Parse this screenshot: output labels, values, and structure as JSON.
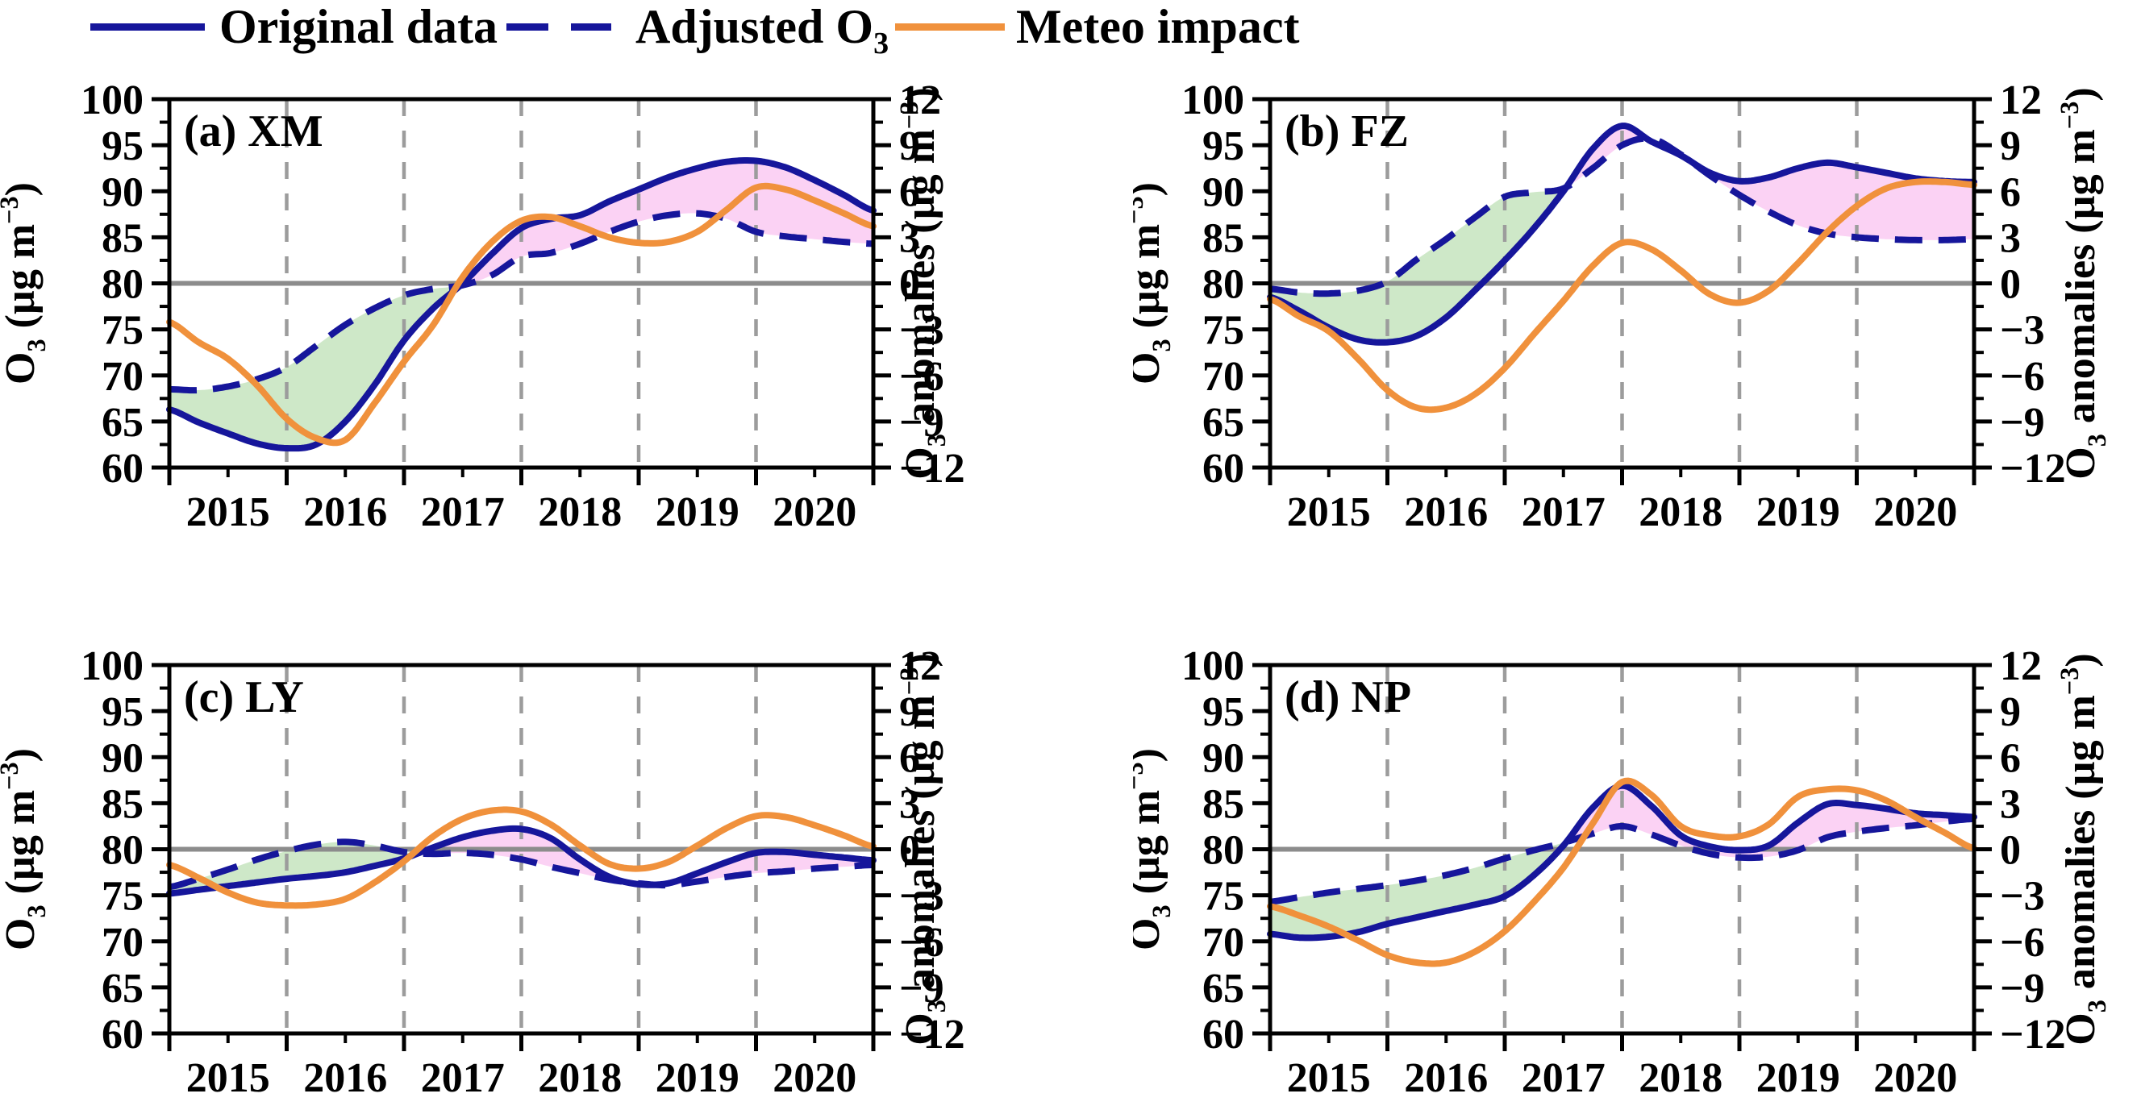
{
  "legend": {
    "items": [
      {
        "key": "original",
        "style": "solid-navy",
        "label_parts": [
          {
            "t": "Original data"
          }
        ]
      },
      {
        "key": "adjusted",
        "style": "dashed-navy",
        "label_parts": [
          {
            "t": "Adjusted O"
          },
          {
            "t": "3",
            "script": "sub"
          }
        ]
      },
      {
        "key": "meteo",
        "style": "solid-orange",
        "label_parts": [
          {
            "t": "Meteo impact"
          }
        ]
      }
    ]
  },
  "colors": {
    "navy": "#16169B",
    "orange": "#F0913C",
    "green_fill": "#CEE8C8",
    "pink_fill": "#FBD2F4",
    "grid": "#9C9C9C",
    "zero_line": "#8C8C8C",
    "axis": "#000000"
  },
  "axes": {
    "left_title_parts": [
      {
        "t": "O"
      },
      {
        "t": "3",
        "script": "sub"
      },
      {
        "t": " (µg m"
      },
      {
        "t": "−3",
        "script": "sup"
      },
      {
        "t": ")"
      }
    ],
    "right_title_parts": [
      {
        "t": "O"
      },
      {
        "t": "3",
        "script": "sub"
      },
      {
        "t": " anomalies (µg m"
      },
      {
        "t": "−3",
        "script": "sup"
      },
      {
        "t": ")"
      }
    ],
    "xlim": [
      2015,
      2021
    ],
    "x_major_ticks": [
      2015,
      2016,
      2017,
      2018,
      2019,
      2020,
      2021
    ],
    "x_minor_ticks": [
      2015.5,
      2016.5,
      2017.5,
      2018.5,
      2019.5,
      2020.5
    ],
    "x_tick_labels": [
      "2015",
      "2016",
      "2017",
      "2018",
      "2019",
      "2020"
    ],
    "gridline_years": [
      2016,
      2017,
      2018,
      2019,
      2020
    ],
    "ylim": [
      60,
      100
    ],
    "left_major_ticks": [
      60,
      65,
      70,
      75,
      80,
      85,
      90,
      95,
      100
    ],
    "left_minor_step": 2.5,
    "right_ylim": [
      -12,
      12
    ],
    "right_major_ticks": [
      -12,
      -9,
      -6,
      -3,
      0,
      3,
      6,
      9,
      12
    ],
    "right_minor_step": 1.5,
    "baseline": 80
  },
  "chart_data": [
    {
      "type": "line",
      "id": "a",
      "label": "(a) XM",
      "x_start": 2015,
      "x_step": 0.25,
      "xlabel": "",
      "ylabel": "O3 (ug m-3)",
      "ylabel_right": "O3 anomalies (ug m-3)",
      "ylim": [
        60,
        100
      ],
      "grid": "vertical-dashed",
      "legend_position": "top",
      "series": [
        {
          "name": "Original data",
          "values": [
            66.3,
            64.9,
            63.7,
            62.6,
            62.1,
            62.5,
            65.0,
            69.0,
            73.8,
            77.3,
            80.0,
            83.2,
            86.0,
            87.0,
            87.4,
            88.9,
            90.2,
            91.5,
            92.5,
            93.2,
            93.3,
            92.6,
            91.2,
            89.6,
            87.9
          ]
        },
        {
          "name": "Adjusted O3",
          "values": [
            68.5,
            68.4,
            68.8,
            69.6,
            70.9,
            73.2,
            75.5,
            77.3,
            78.7,
            79.4,
            79.8,
            80.9,
            82.9,
            83.3,
            84.3,
            85.6,
            86.7,
            87.4,
            87.6,
            87.0,
            85.6,
            85.1,
            84.8,
            84.5,
            84.3
          ]
        },
        {
          "name": "Meteo impact",
          "values": [
            75.8,
            73.6,
            71.8,
            68.9,
            65.3,
            63.2,
            63.0,
            67.0,
            71.5,
            75.5,
            80.7,
            84.5,
            86.8,
            87.2,
            86.2,
            85.0,
            84.4,
            84.5,
            85.6,
            88.0,
            90.4,
            90.2,
            89.0,
            87.6,
            86.2
          ]
        }
      ]
    },
    {
      "type": "line",
      "id": "b",
      "label": "(b) FZ",
      "x_start": 2015,
      "x_step": 0.25,
      "xlabel": "",
      "ylabel": "O3 (ug m-3)",
      "ylabel_right": "O3 anomalies (ug m-3)",
      "ylim": [
        60,
        100
      ],
      "grid": "vertical-dashed",
      "legend_position": "top",
      "series": [
        {
          "name": "Original data",
          "values": [
            78.5,
            77.0,
            75.2,
            73.9,
            73.6,
            74.3,
            76.3,
            79.3,
            82.5,
            86.0,
            90.0,
            94.6,
            97.1,
            95.4,
            93.9,
            92.0,
            91.1,
            91.5,
            92.5,
            93.1,
            92.6,
            92.0,
            91.4,
            91.1,
            91.0
          ]
        },
        {
          "name": "Adjusted O3",
          "values": [
            79.4,
            79.0,
            78.9,
            79.2,
            80.2,
            82.6,
            84.8,
            87.2,
            89.4,
            89.9,
            90.3,
            92.5,
            95.0,
            95.7,
            94.0,
            91.7,
            89.6,
            87.8,
            86.3,
            85.4,
            85.0,
            84.8,
            84.7,
            84.7,
            84.8
          ]
        },
        {
          "name": "Meteo impact",
          "values": [
            78.3,
            76.4,
            74.8,
            71.8,
            68.4,
            66.5,
            66.5,
            68.0,
            70.8,
            74.5,
            78.1,
            81.9,
            84.4,
            83.7,
            81.4,
            78.8,
            77.9,
            79.2,
            82.2,
            85.6,
            88.4,
            90.3,
            91.0,
            91.0,
            90.7
          ]
        }
      ]
    },
    {
      "type": "line",
      "id": "c",
      "label": "(c) LY",
      "x_start": 2015,
      "x_step": 0.25,
      "xlabel": "",
      "ylabel": "O3 (ug m-3)",
      "ylabel_right": "O3 anomalies (ug m-3)",
      "ylim": [
        60,
        100
      ],
      "grid": "vertical-dashed",
      "legend_position": "top",
      "series": [
        {
          "name": "Original data",
          "values": [
            75.2,
            75.6,
            76.0,
            76.4,
            76.8,
            77.1,
            77.5,
            78.2,
            79.0,
            80.2,
            81.3,
            82.0,
            82.2,
            81.2,
            78.9,
            77.0,
            76.2,
            76.3,
            77.4,
            78.6,
            79.6,
            79.7,
            79.4,
            79.1,
            78.8
          ]
        },
        {
          "name": "Adjusted O3",
          "values": [
            75.9,
            76.8,
            77.8,
            78.9,
            79.8,
            80.5,
            80.8,
            80.4,
            79.7,
            79.5,
            79.6,
            79.4,
            78.9,
            78.1,
            77.4,
            76.7,
            76.3,
            76.1,
            76.5,
            77.0,
            77.4,
            77.6,
            77.9,
            78.1,
            78.3
          ]
        },
        {
          "name": "Meteo impact",
          "values": [
            78.3,
            76.9,
            75.3,
            74.2,
            73.9,
            74.0,
            74.6,
            76.4,
            78.7,
            81.4,
            83.3,
            84.2,
            84.1,
            82.7,
            80.4,
            78.4,
            77.9,
            78.6,
            80.4,
            82.3,
            83.6,
            83.5,
            82.6,
            81.5,
            80.3
          ]
        }
      ]
    },
    {
      "type": "line",
      "id": "d",
      "label": "(d) NP",
      "x_start": 2015,
      "x_step": 0.25,
      "xlabel": "",
      "ylabel": "O3 (ug m-3)",
      "ylabel_right": "O3 anomalies (ug m-3)",
      "ylim": [
        60,
        100
      ],
      "grid": "vertical-dashed",
      "legend_position": "top",
      "series": [
        {
          "name": "Original data",
          "values": [
            70.8,
            70.4,
            70.5,
            71.0,
            71.9,
            72.6,
            73.3,
            74.0,
            74.9,
            77.2,
            80.4,
            84.5,
            86.9,
            84.7,
            81.5,
            80.3,
            79.9,
            80.4,
            82.9,
            84.9,
            84.8,
            84.4,
            83.9,
            83.7,
            83.5
          ]
        },
        {
          "name": "Adjusted O3",
          "values": [
            74.3,
            74.8,
            75.3,
            75.7,
            76.1,
            76.6,
            77.2,
            78.0,
            79.0,
            79.9,
            80.7,
            81.7,
            82.5,
            81.6,
            80.4,
            79.5,
            79.1,
            79.2,
            79.9,
            81.3,
            81.9,
            82.3,
            82.6,
            83.0,
            83.3
          ]
        },
        {
          "name": "Meteo impact",
          "values": [
            73.8,
            72.8,
            71.6,
            70.1,
            68.5,
            67.7,
            67.7,
            68.9,
            71.1,
            74.3,
            78.0,
            82.8,
            87.3,
            85.9,
            82.5,
            81.5,
            81.4,
            82.7,
            85.7,
            86.5,
            86.4,
            85.3,
            83.5,
            81.8,
            80.1
          ]
        }
      ]
    }
  ]
}
